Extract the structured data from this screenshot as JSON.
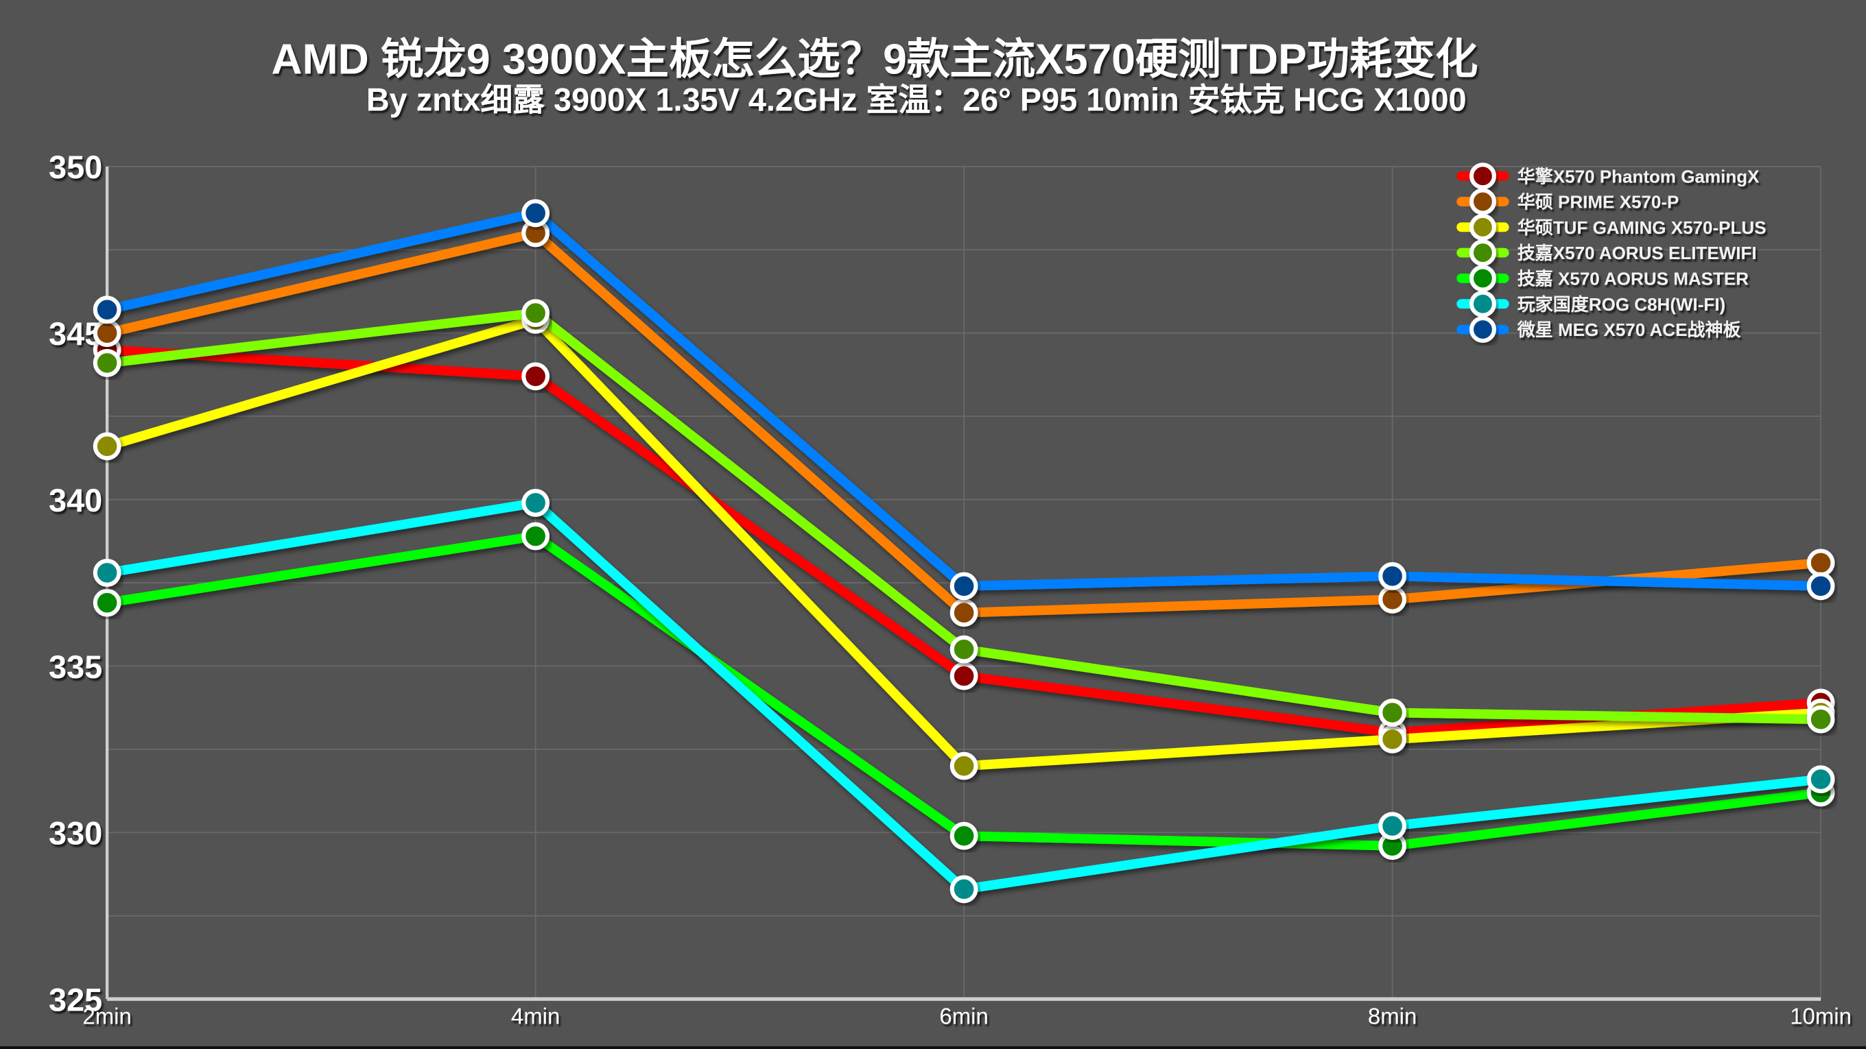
{
  "title": "AMD 锐龙9 3900X主板怎么选？9款主流X570硬测TDP功耗变化",
  "subtitle": "By  zntx细露 3900X 1.35V 4.2GHz 室温：26° P95 10min 安钛克 HCG X1000",
  "colors": {
    "background": "#535353",
    "grid": "#6a6a6a",
    "axis": "#cfcfcf",
    "text": "#ffffff"
  },
  "chart_data": {
    "type": "line",
    "title": "AMD 锐龙9 3900X主板怎么选？9款主流X570硬测TDP功耗变化",
    "subtitle": "By  zntx细露 3900X 1.35V 4.2GHz 室温：26° P95 10min 安钛克 HCG X1000",
    "xlabel": "",
    "ylabel": "",
    "categories": [
      "2min",
      "4min",
      "6min",
      "8min",
      "10min"
    ],
    "ylim": [
      325,
      350
    ],
    "yticks": [
      325,
      330,
      335,
      340,
      345,
      350
    ],
    "grid": true,
    "legend_position": "top-right",
    "series": [
      {
        "name": "华擎X570 Phantom GamingX",
        "line_color": "#ff0000",
        "marker_color": "#8b0000",
        "values": [
          344.5,
          343.7,
          334.7,
          333.0,
          333.9
        ]
      },
      {
        "name": "华硕 PRIME X570-P",
        "line_color": "#ff8000",
        "marker_color": "#8b4500",
        "values": [
          345.0,
          348.0,
          336.6,
          337.0,
          338.1
        ]
      },
      {
        "name": "华硕TUF GAMING X570-PLUS",
        "line_color": "#ffff00",
        "marker_color": "#8b8b00",
        "values": [
          341.6,
          345.4,
          332.0,
          332.8,
          333.6
        ]
      },
      {
        "name": "技嘉X570 AORUS ELITEWIFI",
        "line_color": "#80ff00",
        "marker_color": "#458b00",
        "values": [
          344.1,
          345.6,
          335.5,
          333.6,
          333.4
        ]
      },
      {
        "name": "技嘉 X570 AORUS MASTER",
        "line_color": "#00ff00",
        "marker_color": "#008b00",
        "values": [
          336.9,
          338.9,
          329.9,
          329.6,
          331.2
        ]
      },
      {
        "name": "玩家国度ROG C8H(WI-FI)",
        "line_color": "#00ffff",
        "marker_color": "#008b8b",
        "values": [
          337.8,
          339.9,
          328.3,
          330.2,
          331.6
        ]
      },
      {
        "name": "微星 MEG X570 ACE战神板",
        "line_color": "#0080ff",
        "marker_color": "#00458b",
        "values": [
          345.7,
          348.6,
          337.4,
          337.7,
          337.4
        ]
      }
    ]
  }
}
